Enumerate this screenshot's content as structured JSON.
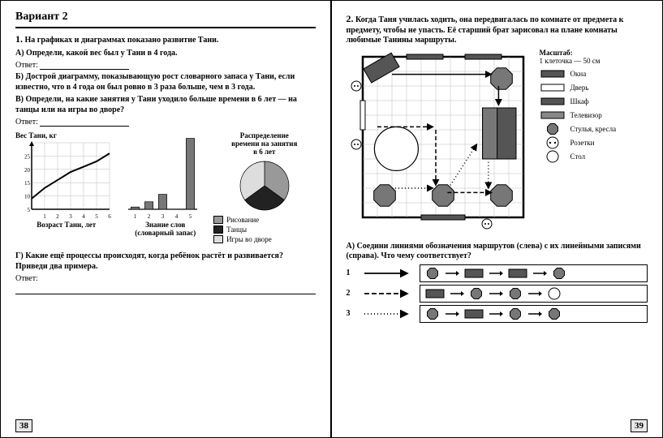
{
  "colors": {
    "black": "#000000",
    "dark_gray": "#555555",
    "mid_gray": "#888888",
    "light_gray": "#cccccc",
    "vlight_gray": "#e8e8e8",
    "white": "#ffffff"
  },
  "left": {
    "variant_title": "Вариант 2",
    "q1_num": "1.",
    "q1_text": "На графиках и диаграммах показано развитие Тани.",
    "qA": "А) Определи, какой вес был у Тани в 4 года.",
    "answer_label": "Ответ:",
    "qB": "Б) Дострой диаграмму, показывающую рост словарного запаса у Тани, если известно, что в 4 года он был ровно в 3 раза больше, чем в 3 года.",
    "qV": "В) Определи, на какие занятия у Тани уходило больше времени в 6 лет — на танцы или на игры во дворе?",
    "weight_chart": {
      "title": "Вес Тани, кг",
      "xlabel": "Возраст Тани, лет",
      "x_ticks": [
        "1",
        "2",
        "3",
        "4",
        "5",
        "6"
      ],
      "y_ticks": [
        "5",
        "10",
        "15",
        "20",
        "25"
      ],
      "ylim": [
        0,
        25
      ],
      "xlim": [
        0,
        6
      ],
      "points": [
        [
          0,
          4
        ],
        [
          1,
          8
        ],
        [
          2,
          11
        ],
        [
          3,
          14
        ],
        [
          4,
          16
        ],
        [
          5,
          18
        ],
        [
          6,
          21
        ]
      ],
      "line_color": "#000000",
      "grid_color": "#bbbbbb"
    },
    "bar_chart": {
      "xlabel1": "Знание слов",
      "xlabel2": "(словарный запас)",
      "x_ticks": [
        "1",
        "2",
        "3",
        "4",
        "5"
      ],
      "values": [
        0.3,
        1.0,
        2.0,
        null,
        9.5
      ],
      "ylim": [
        0,
        10
      ],
      "bar_color": "#777777",
      "grid_color": "#bbbbbb"
    },
    "pie_chart": {
      "title1": "Распределение",
      "title2": "времени на занятия",
      "title3": "в 6 лет",
      "slices": [
        {
          "label": "Рисование",
          "color": "#999999",
          "frac": 0.35
        },
        {
          "label": "Танцы",
          "color": "#222222",
          "frac": 0.3
        },
        {
          "label": "Игры во дворе",
          "color": "#dddddd",
          "frac": 0.35
        }
      ],
      "legend": [
        {
          "label": "Рисование",
          "color": "#999999"
        },
        {
          "label": "Танцы",
          "color": "#222222"
        },
        {
          "label": "Игры во дворе",
          "color": "#dddddd"
        }
      ]
    },
    "qG": "Г) Какие ещё процессы происходят, когда ребёнок растёт и развивается? Приведи два примера.",
    "page_num": "38"
  },
  "right": {
    "q2_num": "2.",
    "q2_text": "Когда Таня училась ходить, она передвигалась по комнате от предмета к предмету, чтобы не упасть. Её старший брат зарисовал на плане комнаты любимые Танины маршруты.",
    "scale_label": "Масштаб:",
    "scale_text": "1 клеточка — 50 см",
    "legend": [
      {
        "key": "window",
        "label": "Окна",
        "fill": "#555555"
      },
      {
        "key": "door",
        "label": "Дверь",
        "fill": "#ffffff"
      },
      {
        "key": "wardrobe",
        "label": "Шкаф",
        "fill": "#555555"
      },
      {
        "key": "tv",
        "label": "Телевизор",
        "fill": "#888888"
      },
      {
        "key": "chair",
        "label": "Стулья, кресла",
        "fill": "#777777",
        "shape": "oct"
      },
      {
        "key": "socket",
        "label": "Розетки",
        "fill": "#ffffff",
        "shape": "socket"
      },
      {
        "key": "table",
        "label": "Стол",
        "fill": "#ffffff",
        "shape": "circle"
      }
    ],
    "qA": "А) Соедини линиями обозначения маршрутов (слева) с их линейными записями (справа). Что чему соответствует?",
    "routes": [
      "1",
      "2",
      "3"
    ],
    "route_arrows": [
      "solid",
      "dash2",
      "dots"
    ],
    "route_boxes": [
      [
        "oct",
        "rect",
        "rect",
        "oct"
      ],
      [
        "rect",
        "oct",
        "oct",
        "circle"
      ],
      [
        "oct",
        "rect",
        "oct",
        "oct"
      ]
    ],
    "page_num": "39"
  }
}
